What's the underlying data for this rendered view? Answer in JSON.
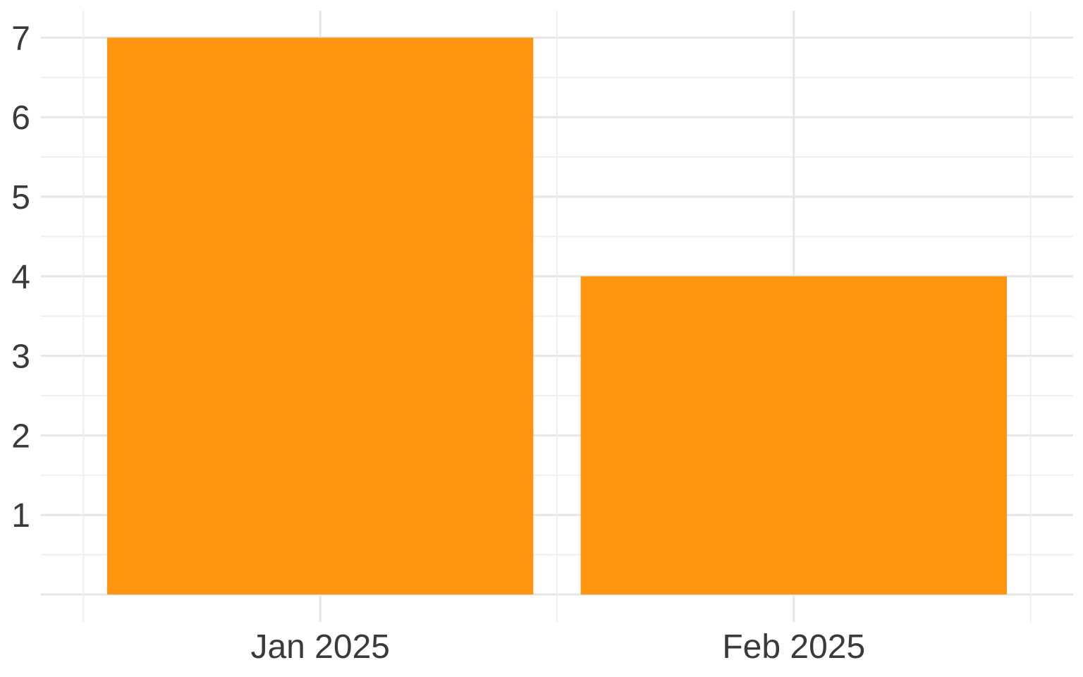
{
  "chart_data": {
    "type": "bar",
    "categories": [
      "Jan 2025",
      "Feb 2025"
    ],
    "values": [
      7,
      4
    ],
    "title": "",
    "xlabel": "",
    "ylabel": "",
    "ylim": [
      0,
      7
    ],
    "yticks": [
      1,
      2,
      3,
      4,
      5,
      6,
      7
    ],
    "grid": true,
    "bar_color": "#FF950E"
  }
}
